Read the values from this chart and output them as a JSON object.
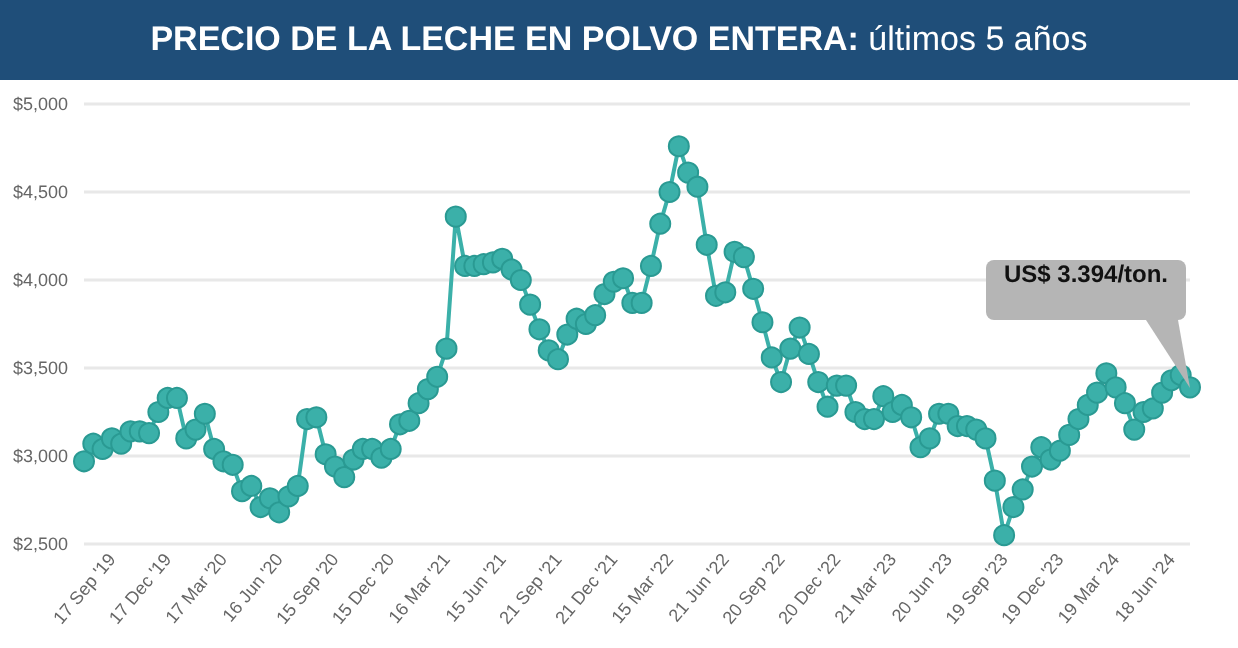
{
  "chart_data": {
    "type": "line",
    "title": "PRECIO DE LA LECHE EN POLVO ENTERA: últimos 5 años",
    "categories": [
      null,
      null,
      null,
      "17 Sep '19",
      null,
      null,
      null,
      null,
      null,
      "17 Dec '19",
      null,
      null,
      null,
      null,
      null,
      "17 Mar '20",
      null,
      null,
      null,
      null,
      null,
      "16 Jun '20",
      null,
      null,
      null,
      null,
      null,
      "15 Sep '20",
      null,
      null,
      null,
      null,
      null,
      "15 Dec '20",
      null,
      null,
      null,
      null,
      null,
      "16 Mar '21",
      null,
      null,
      null,
      null,
      null,
      "15 Jun '21",
      null,
      null,
      null,
      null,
      null,
      "21 Sep '21",
      null,
      null,
      null,
      null,
      null,
      "21 Dec '21",
      null,
      null,
      null,
      null,
      null,
      "15 Mar '22",
      null,
      null,
      null,
      null,
      null,
      "21 Jun '22",
      null,
      null,
      null,
      null,
      null,
      "20 Sep '22",
      null,
      null,
      null,
      null,
      null,
      "20 Dec '22",
      null,
      null,
      null,
      null,
      null,
      "21 Mar '23",
      null,
      null,
      null,
      null,
      null,
      "20 Jun '23",
      null,
      null,
      null,
      null,
      null,
      "19 Sep '23",
      null,
      null,
      null,
      null,
      null,
      "19 Dec '23",
      null,
      null,
      null,
      null,
      null,
      "19 Mar '24",
      null,
      null,
      null,
      null,
      null,
      "18 Jun '24",
      null,
      null
    ],
    "series": [
      {
        "color": "#3bb0a9",
        "values": [
          2970,
          3070,
          3040,
          3100,
          3070,
          3140,
          3140,
          3130,
          3250,
          3330,
          3330,
          3100,
          3150,
          3240,
          3040,
          2970,
          2950,
          2800,
          2830,
          2710,
          2760,
          2680,
          2770,
          2830,
          3210,
          3220,
          3010,
          2940,
          2880,
          2980,
          3040,
          3040,
          2990,
          3040,
          3180,
          3200,
          3300,
          3380,
          3450,
          3610,
          4360,
          4080,
          4080,
          4090,
          4100,
          4120,
          4060,
          4000,
          3860,
          3720,
          3600,
          3550,
          3690,
          3780,
          3750,
          3800,
          3920,
          3990,
          4010,
          3870,
          3870,
          4080,
          4320,
          4500,
          4760,
          4610,
          4530,
          4200,
          3910,
          3930,
          4160,
          4130,
          3950,
          3760,
          3560,
          3420,
          3610,
          3730,
          3580,
          3420,
          3280,
          3400,
          3400,
          3250,
          3210,
          3210,
          3340,
          3250,
          3290,
          3220,
          3050,
          3100,
          3240,
          3240,
          3170,
          3170,
          3150,
          3100,
          2860,
          2550,
          2710,
          2810,
          2940,
          3050,
          2980,
          3030,
          3120,
          3210,
          3290,
          3360,
          3470,
          3390,
          3300,
          3150,
          3250,
          3270,
          3360,
          3430,
          3460,
          3390
        ]
      }
    ],
    "ylim": [
      2500,
      5000
    ],
    "yticks": [
      {
        "value": 2500,
        "label": "$2,500"
      },
      {
        "value": 3000,
        "label": "$3,000"
      },
      {
        "value": 3500,
        "label": "$3,500"
      },
      {
        "value": 4000,
        "label": "$4,000"
      },
      {
        "value": 4500,
        "label": "$4,500"
      },
      {
        "value": 5000,
        "label": "$5,000"
      }
    ],
    "grid": "y",
    "marker": "circle",
    "line_style": "solid",
    "annotations": [
      "US$ 3.394/ton."
    ]
  }
}
